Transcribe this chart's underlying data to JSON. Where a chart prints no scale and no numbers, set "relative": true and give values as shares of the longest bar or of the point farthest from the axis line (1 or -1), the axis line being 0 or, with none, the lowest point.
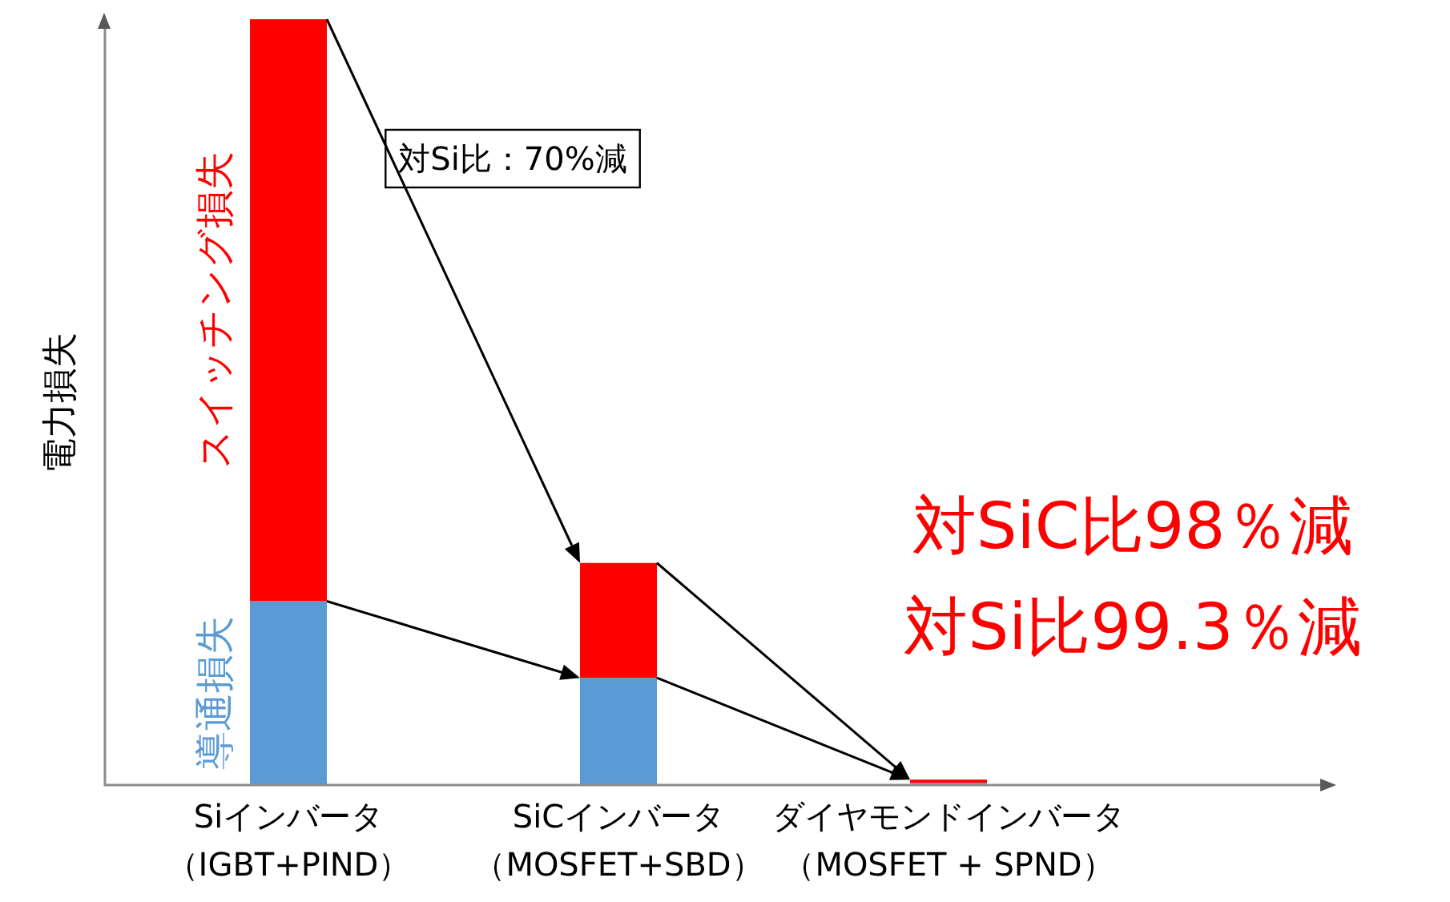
{
  "chart_data": {
    "type": "bar",
    "stacked": true,
    "relative": true,
    "ylabel": "電力損失",
    "categories": [
      "Siインバータ（IGBT+PIND）",
      "SiCインバータ（MOSFET+SBD）",
      "ダイヤモンドインバータ（MOSFET + SPND）"
    ],
    "series": [
      {
        "name": "導通損失",
        "color": "#5b9bd5",
        "values": [
          0.24,
          0.14,
          0.003
        ]
      },
      {
        "name": "スイッチング損失",
        "color": "#ff0000",
        "values": [
          0.76,
          0.15,
          0.004
        ]
      }
    ],
    "annotations": [
      "対Si比：70%減",
      "対SiC比98％減",
      "対Si比99.3％減"
    ],
    "grid": false
  }
}
